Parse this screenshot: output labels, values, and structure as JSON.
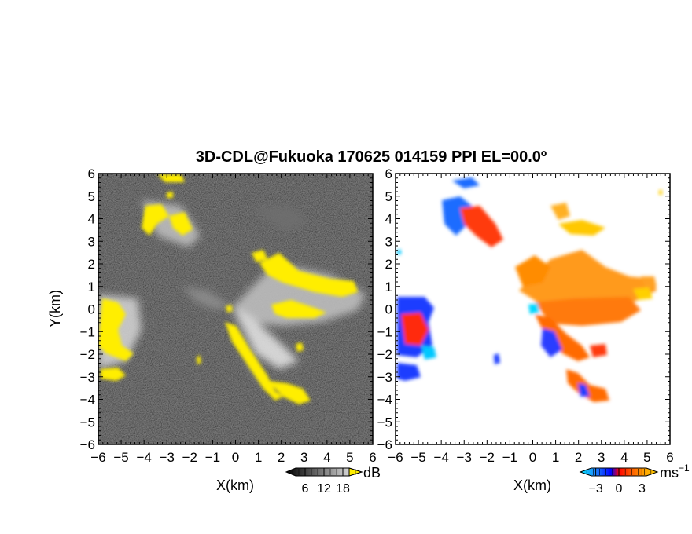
{
  "figure": {
    "title": "3D-CDL@Fukuoka 170625 014159 PPI EL=00.0º"
  },
  "chart_data": [
    {
      "type": "heatmap",
      "panel": "left",
      "quantity": "",
      "xlabel": "X(km)",
      "ylabel": "Y(km)",
      "xlim": [
        -6,
        6
      ],
      "ylim": [
        -6,
        6
      ],
      "xticks": [
        -6,
        -5,
        -4,
        -3,
        -2,
        -1,
        0,
        1,
        2,
        3,
        4,
        5,
        6
      ],
      "yticks": [
        -6,
        -5,
        -4,
        -3,
        -2,
        -1,
        0,
        1,
        2,
        3,
        4,
        5,
        6
      ],
      "colorbar": {
        "unit": "dB",
        "ticks": [
          6,
          12,
          18
        ],
        "range": [
          0,
          24
        ],
        "colors": [
          "#000000",
          "#ffffff"
        ],
        "overflow_color": "#ffee00"
      },
      "colors": {
        "background": "#1e1e1e",
        "echo": "#d8d8d8",
        "strong": "#ffee00"
      }
    },
    {
      "type": "heatmap",
      "panel": "right",
      "quantity": "",
      "xlabel": "X(km)",
      "ylabel": "",
      "xlim": [
        -6,
        6
      ],
      "ylim": [
        -6,
        6
      ],
      "xticks": [
        -6,
        -5,
        -4,
        -3,
        -2,
        -1,
        0,
        1,
        2,
        3,
        4,
        5,
        6
      ],
      "yticks": [
        -6,
        -5,
        -4,
        -3,
        -2,
        -1,
        0,
        1,
        2,
        3,
        4,
        5,
        6
      ],
      "colorbar": {
        "unit": "ms",
        "unit_exponent": "−1",
        "ticks": [
          -3,
          0,
          3
        ],
        "range": [
          -5,
          5
        ],
        "colors": [
          "#00e5ff",
          "#1e90ff",
          "#0000ff",
          "#ff0000",
          "#ff5a00",
          "#ffa500",
          "#ffd000"
        ]
      },
      "colors": {
        "background": "#ffffff",
        "toward": "#1a3cff",
        "away": "#ff6a00"
      }
    }
  ]
}
